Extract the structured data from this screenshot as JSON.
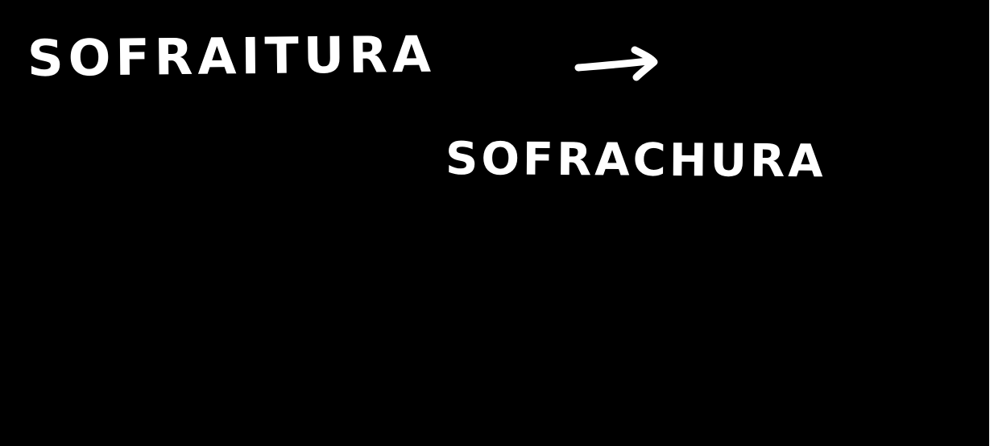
{
  "note": {
    "line_1": "SOFRAITURA",
    "line_2": "SOFRACHURA",
    "arrow_icon": "right-arrow-icon"
  },
  "colors": {
    "background": "#000000",
    "ink": "#ffffff"
  }
}
